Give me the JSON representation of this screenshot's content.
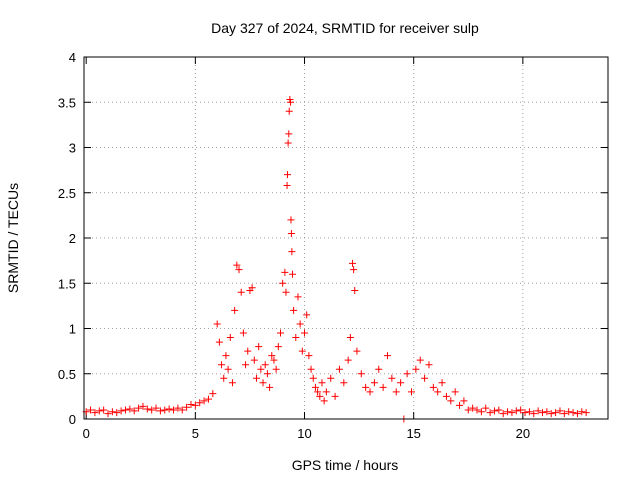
{
  "chart_data": {
    "type": "scatter",
    "title": "Day 327 of 2024, SRMTID for receiver sulp",
    "xlabel": "GPS time / hours",
    "ylabel": "SRMTID / TECUs",
    "xlim": [
      -0.1,
      23.9
    ],
    "ylim": [
      0,
      4
    ],
    "x_ticks": [
      0,
      5,
      10,
      15,
      20
    ],
    "x_tick_labels": [
      "0",
      "5",
      "10",
      "15",
      "20"
    ],
    "y_ticks": [
      0,
      0.5,
      1,
      1.5,
      2,
      2.5,
      3,
      3.5,
      4
    ],
    "y_tick_labels": [
      "0",
      "0.5",
      "1",
      "1.5",
      "2",
      "2.5",
      "3",
      "3.5",
      "4"
    ],
    "grid": true,
    "marker": "+",
    "color": "#ff0000",
    "series": [
      {
        "name": "SRMTID",
        "points": [
          [
            0.0,
            0.08
          ],
          [
            0.2,
            0.1
          ],
          [
            0.4,
            0.07
          ],
          [
            0.6,
            0.09
          ],
          [
            0.8,
            0.1
          ],
          [
            1.0,
            0.06
          ],
          [
            1.2,
            0.08
          ],
          [
            1.4,
            0.07
          ],
          [
            1.6,
            0.09
          ],
          [
            1.8,
            0.1
          ],
          [
            2.0,
            0.11
          ],
          [
            2.2,
            0.09
          ],
          [
            2.4,
            0.12
          ],
          [
            2.6,
            0.14
          ],
          [
            2.8,
            0.11
          ],
          [
            3.0,
            0.1
          ],
          [
            3.2,
            0.12
          ],
          [
            3.4,
            0.09
          ],
          [
            3.6,
            0.1
          ],
          [
            3.8,
            0.11
          ],
          [
            4.0,
            0.1
          ],
          [
            4.2,
            0.12
          ],
          [
            4.4,
            0.1
          ],
          [
            4.6,
            0.13
          ],
          [
            4.8,
            0.16
          ],
          [
            5.0,
            0.15
          ],
          [
            5.2,
            0.18
          ],
          [
            5.4,
            0.2
          ],
          [
            5.6,
            0.22
          ],
          [
            5.8,
            0.28
          ],
          [
            6.0,
            1.05
          ],
          [
            6.1,
            0.85
          ],
          [
            6.2,
            0.6
          ],
          [
            6.3,
            0.45
          ],
          [
            6.4,
            0.7
          ],
          [
            6.5,
            0.55
          ],
          [
            6.6,
            0.9
          ],
          [
            6.7,
            0.4
          ],
          [
            6.8,
            1.2
          ],
          [
            6.9,
            1.7
          ],
          [
            7.0,
            1.65
          ],
          [
            7.1,
            1.4
          ],
          [
            7.2,
            0.95
          ],
          [
            7.3,
            0.6
          ],
          [
            7.4,
            0.75
          ],
          [
            7.5,
            1.42
          ],
          [
            7.6,
            1.45
          ],
          [
            7.7,
            0.65
          ],
          [
            7.8,
            0.45
          ],
          [
            7.9,
            0.8
          ],
          [
            8.0,
            0.55
          ],
          [
            8.1,
            0.4
          ],
          [
            8.2,
            0.6
          ],
          [
            8.3,
            0.5
          ],
          [
            8.4,
            0.35
          ],
          [
            8.5,
            0.7
          ],
          [
            8.6,
            0.65
          ],
          [
            8.7,
            0.55
          ],
          [
            8.8,
            0.8
          ],
          [
            8.9,
            0.95
          ],
          [
            9.0,
            1.5
          ],
          [
            9.1,
            1.62
          ],
          [
            9.15,
            1.4
          ],
          [
            9.2,
            2.58
          ],
          [
            9.22,
            2.7
          ],
          [
            9.25,
            3.05
          ],
          [
            9.28,
            3.15
          ],
          [
            9.3,
            3.4
          ],
          [
            9.33,
            3.53
          ],
          [
            9.36,
            3.5
          ],
          [
            9.38,
            2.2
          ],
          [
            9.4,
            2.05
          ],
          [
            9.42,
            1.85
          ],
          [
            9.45,
            1.6
          ],
          [
            9.5,
            1.2
          ],
          [
            9.6,
            0.9
          ],
          [
            9.7,
            1.35
          ],
          [
            9.8,
            1.05
          ],
          [
            9.9,
            0.75
          ],
          [
            10.0,
            0.95
          ],
          [
            10.1,
            1.15
          ],
          [
            10.2,
            0.7
          ],
          [
            10.3,
            0.55
          ],
          [
            10.4,
            0.45
          ],
          [
            10.5,
            0.35
          ],
          [
            10.6,
            0.3
          ],
          [
            10.7,
            0.25
          ],
          [
            10.8,
            0.4
          ],
          [
            10.9,
            0.2
          ],
          [
            11.0,
            0.3
          ],
          [
            11.2,
            0.45
          ],
          [
            11.4,
            0.25
          ],
          [
            11.6,
            0.55
          ],
          [
            11.8,
            0.4
          ],
          [
            12.0,
            0.65
          ],
          [
            12.1,
            0.9
          ],
          [
            12.2,
            1.72
          ],
          [
            12.25,
            1.65
          ],
          [
            12.3,
            1.42
          ],
          [
            12.4,
            0.75
          ],
          [
            12.6,
            0.5
          ],
          [
            12.8,
            0.35
          ],
          [
            13.0,
            0.3
          ],
          [
            13.2,
            0.4
          ],
          [
            13.4,
            0.55
          ],
          [
            13.6,
            0.35
          ],
          [
            13.8,
            0.7
          ],
          [
            14.0,
            0.45
          ],
          [
            14.2,
            0.3
          ],
          [
            14.4,
            0.4
          ],
          [
            14.55,
            0.0
          ],
          [
            14.7,
            0.5
          ],
          [
            14.9,
            0.3
          ],
          [
            15.1,
            0.55
          ],
          [
            15.3,
            0.65
          ],
          [
            15.5,
            0.45
          ],
          [
            15.7,
            0.6
          ],
          [
            15.9,
            0.35
          ],
          [
            16.1,
            0.3
          ],
          [
            16.3,
            0.4
          ],
          [
            16.5,
            0.25
          ],
          [
            16.7,
            0.2
          ],
          [
            16.9,
            0.3
          ],
          [
            17.1,
            0.15
          ],
          [
            17.3,
            0.2
          ],
          [
            17.5,
            0.1
          ],
          [
            17.7,
            0.12
          ],
          [
            17.9,
            0.1
          ],
          [
            18.1,
            0.08
          ],
          [
            18.3,
            0.12
          ],
          [
            18.5,
            0.07
          ],
          [
            18.7,
            0.09
          ],
          [
            18.9,
            0.1
          ],
          [
            19.1,
            0.06
          ],
          [
            19.3,
            0.08
          ],
          [
            19.5,
            0.07
          ],
          [
            19.7,
            0.09
          ],
          [
            19.9,
            0.1
          ],
          [
            20.1,
            0.07
          ],
          [
            20.3,
            0.08
          ],
          [
            20.5,
            0.06
          ],
          [
            20.7,
            0.09
          ],
          [
            20.9,
            0.07
          ],
          [
            21.1,
            0.08
          ],
          [
            21.3,
            0.06
          ],
          [
            21.5,
            0.07
          ],
          [
            21.7,
            0.09
          ],
          [
            21.9,
            0.06
          ],
          [
            22.1,
            0.08
          ],
          [
            22.3,
            0.07
          ],
          [
            22.5,
            0.06
          ],
          [
            22.7,
            0.08
          ],
          [
            22.9,
            0.07
          ]
        ]
      }
    ]
  }
}
